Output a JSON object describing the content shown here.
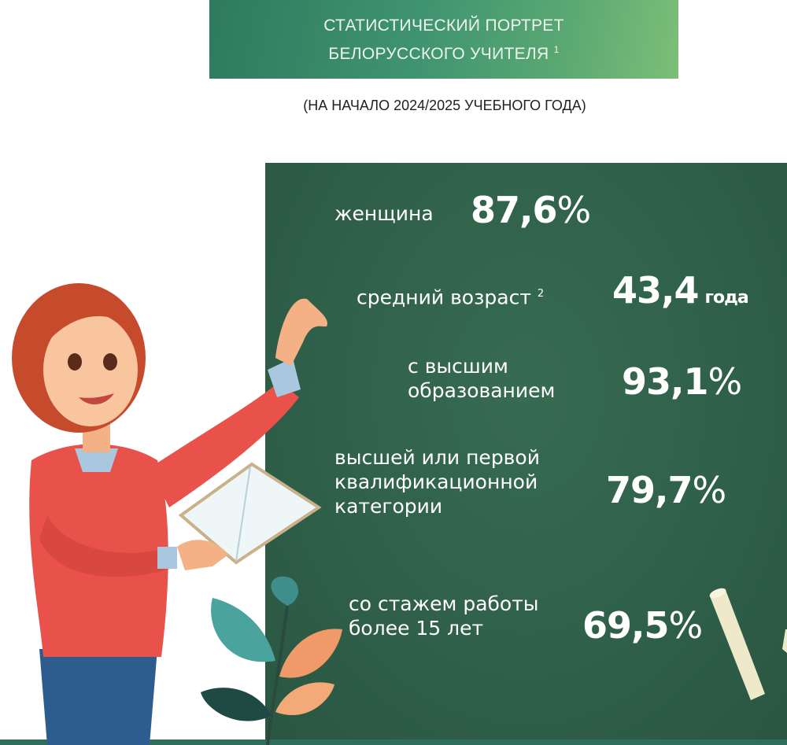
{
  "header": {
    "title_line1": "СТАТИСТИЧЕСКИЙ ПОРТРЕТ",
    "title_line2": "БЕЛОРУССКОГО УЧИТЕЛЯ",
    "footnote": "1"
  },
  "subtitle": "(НА НАЧАЛО 2024/2025 УЧЕБНОГО ГОДА)",
  "stats": [
    {
      "label": "женщина",
      "value": "87,6",
      "unit": "%"
    },
    {
      "label": "средний возраст",
      "footnote": "2",
      "value": "43,4",
      "unit": "года"
    },
    {
      "label_lines": [
        "с высшим",
        "образованием"
      ],
      "value": "93,1",
      "unit": "%"
    },
    {
      "label_lines": [
        "высшей или первой",
        "квалификационной",
        "категории"
      ],
      "value": "79,7",
      "unit": "%"
    },
    {
      "label_lines": [
        "со стажем работы",
        "более 15 лет"
      ],
      "value": "69,5",
      "unit": "%"
    }
  ],
  "colors": {
    "board": "#2f5f49",
    "header_start": "#2f7a5e",
    "header_end": "#7dbe78",
    "sweater": "#e8524a"
  }
}
